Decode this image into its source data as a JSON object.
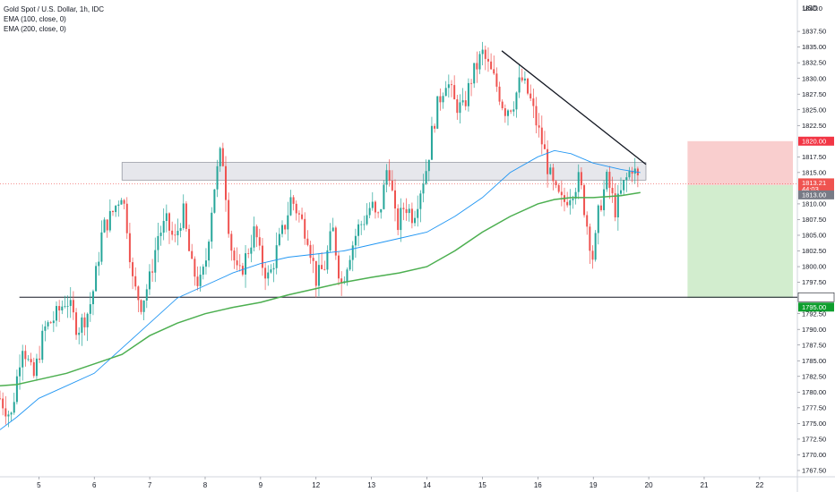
{
  "legend": {
    "symbol": "Gold Spot / U.S. Dollar, 1h, IDC",
    "ema100": "EMA (100, close, 0)",
    "ema200": "EMA (200, close, 0)"
  },
  "currency": "USD",
  "colors": {
    "up": "#26a69a",
    "down": "#ef5350",
    "ema100": "#2196f3",
    "ema200": "#4caf50",
    "resistance_zone": "#d1d4dc",
    "stop_zone": "#f8c9c9",
    "target_zone": "#cdebc9",
    "stop_tag": "#f23645",
    "target_tag": "#0e9e2e",
    "price_tag": "#ef5350",
    "support_tag": "#131722"
  },
  "chart_data": {
    "type": "candlestick",
    "ylim": [
      1766.5,
      1842.5
    ],
    "y_ticks": [
      "1767.50",
      "1770.00",
      "1772.50",
      "1775.00",
      "1777.50",
      "1780.00",
      "1782.50",
      "1785.00",
      "1787.50",
      "1790.00",
      "1792.50",
      "1797.50",
      "1800.00",
      "1802.50",
      "1805.00",
      "1807.50",
      "1810.00",
      "1815.00",
      "1817.50",
      "1822.50",
      "1825.00",
      "1827.50",
      "1830.00",
      "1832.50",
      "1835.00",
      "1837.50"
    ],
    "y_top_partial": "1840.0",
    "x_ticks": [
      "5",
      "6",
      "7",
      "8",
      "9",
      "12",
      "13",
      "14",
      "15",
      "16",
      "19",
      "20",
      "21",
      "22"
    ],
    "x_tick_pos": [
      5,
      6,
      7,
      8,
      9,
      10,
      11,
      12,
      13,
      14,
      15,
      16,
      17,
      18
    ],
    "x_range": [
      4.3,
      18.6
    ],
    "price_path": [
      [
        4.3,
        1779
      ],
      [
        4.5,
        1776
      ],
      [
        4.7,
        1788
      ],
      [
        4.9,
        1782
      ],
      [
        5.1,
        1790
      ],
      [
        5.3,
        1792
      ],
      [
        5.5,
        1795
      ],
      [
        5.7,
        1790
      ],
      [
        5.9,
        1793
      ],
      [
        6.0,
        1797
      ],
      [
        6.15,
        1806
      ],
      [
        6.3,
        1808
      ],
      [
        6.5,
        1812
      ],
      [
        6.6,
        1806
      ],
      [
        6.7,
        1797
      ],
      [
        6.85,
        1794
      ],
      [
        7.0,
        1798
      ],
      [
        7.15,
        1805
      ],
      [
        7.3,
        1807
      ],
      [
        7.45,
        1804
      ],
      [
        7.6,
        1809
      ],
      [
        7.75,
        1800
      ],
      [
        7.9,
        1797
      ],
      [
        8.0,
        1800
      ],
      [
        8.15,
        1812
      ],
      [
        8.3,
        1819
      ],
      [
        8.45,
        1804
      ],
      [
        8.6,
        1798
      ],
      [
        8.75,
        1802
      ],
      [
        8.9,
        1806
      ],
      [
        9.0,
        1801
      ],
      [
        9.15,
        1798
      ],
      [
        9.3,
        1803
      ],
      [
        9.45,
        1807
      ],
      [
        9.55,
        1811
      ],
      [
        9.7,
        1808
      ],
      [
        9.85,
        1805
      ],
      [
        10.0,
        1798
      ],
      [
        10.15,
        1800
      ],
      [
        10.3,
        1806
      ],
      [
        10.45,
        1797
      ],
      [
        10.6,
        1802
      ],
      [
        10.75,
        1806
      ],
      [
        10.9,
        1808
      ],
      [
        11.0,
        1810
      ],
      [
        11.1,
        1807
      ],
      [
        11.2,
        1811
      ],
      [
        11.3,
        1817
      ],
      [
        11.45,
        1806
      ],
      [
        11.6,
        1810
      ],
      [
        11.75,
        1808
      ],
      [
        11.9,
        1813
      ],
      [
        12.0,
        1816
      ],
      [
        12.1,
        1822
      ],
      [
        12.2,
        1826
      ],
      [
        12.35,
        1830
      ],
      [
        12.5,
        1826
      ],
      [
        12.65,
        1825
      ],
      [
        12.8,
        1830
      ],
      [
        12.9,
        1832
      ],
      [
        13.0,
        1834
      ],
      [
        13.1,
        1832
      ],
      [
        13.25,
        1829
      ],
      [
        13.4,
        1825
      ],
      [
        13.55,
        1826
      ],
      [
        13.7,
        1830
      ],
      [
        13.85,
        1827
      ],
      [
        14.0,
        1822
      ],
      [
        14.1,
        1819
      ],
      [
        14.2,
        1815
      ],
      [
        14.3,
        1812
      ],
      [
        14.45,
        1810
      ],
      [
        14.6,
        1812
      ],
      [
        14.75,
        1814
      ],
      [
        14.9,
        1806
      ],
      [
        15.0,
        1801
      ],
      [
        15.1,
        1809
      ],
      [
        15.25,
        1814
      ],
      [
        15.4,
        1809
      ],
      [
        15.55,
        1813
      ],
      [
        15.7,
        1816
      ],
      [
        15.85,
        1813
      ]
    ],
    "ema100": [
      [
        4.3,
        1774
      ],
      [
        4.6,
        1776
      ],
      [
        5.0,
        1779
      ],
      [
        5.5,
        1781
      ],
      [
        6.0,
        1783
      ],
      [
        6.5,
        1787
      ],
      [
        7.0,
        1791
      ],
      [
        7.5,
        1795
      ],
      [
        8.0,
        1797
      ],
      [
        8.5,
        1799
      ],
      [
        9.0,
        1800.5
      ],
      [
        9.5,
        1801.5
      ],
      [
        10.0,
        1802
      ],
      [
        10.5,
        1802.5
      ],
      [
        11.0,
        1803.5
      ],
      [
        11.5,
        1804.5
      ],
      [
        12.0,
        1805.5
      ],
      [
        12.5,
        1808
      ],
      [
        13.0,
        1811
      ],
      [
        13.5,
        1815
      ],
      [
        14.0,
        1817.5
      ],
      [
        14.3,
        1818.5
      ],
      [
        14.6,
        1818
      ],
      [
        15.0,
        1816.5
      ],
      [
        15.5,
        1815.5
      ],
      [
        15.85,
        1815
      ]
    ],
    "ema200": [
      [
        4.3,
        1781
      ],
      [
        4.6,
        1781.2
      ],
      [
        5.0,
        1782
      ],
      [
        5.5,
        1783
      ],
      [
        6.0,
        1784.5
      ],
      [
        6.5,
        1786
      ],
      [
        7.0,
        1789
      ],
      [
        7.5,
        1791
      ],
      [
        8.0,
        1792.5
      ],
      [
        8.5,
        1793.5
      ],
      [
        9.0,
        1794.3
      ],
      [
        9.5,
        1795.5
      ],
      [
        10.0,
        1796.5
      ],
      [
        10.5,
        1797.5
      ],
      [
        11.0,
        1798.3
      ],
      [
        11.5,
        1799
      ],
      [
        12.0,
        1800
      ],
      [
        12.5,
        1802.5
      ],
      [
        13.0,
        1805.5
      ],
      [
        13.5,
        1808
      ],
      [
        14.0,
        1810
      ],
      [
        14.3,
        1810.7
      ],
      [
        14.6,
        1811
      ],
      [
        15.0,
        1811
      ],
      [
        15.5,
        1811.3
      ],
      [
        15.85,
        1811.8
      ]
    ],
    "trendline": [
      [
        13.35,
        1834.4
      ],
      [
        15.95,
        1816.3
      ]
    ],
    "support_level": 1795.12,
    "resistance_zone": {
      "x_start": 6.5,
      "x_end": 15.95,
      "top": 1816.6,
      "bottom": 1813.8
    },
    "position": {
      "x_start": 16.7,
      "x_end": 18.6,
      "entry": 1813.0,
      "stop": 1820.0,
      "target": 1795.0
    },
    "price_labels": {
      "stop": "1820.00",
      "current": "1813.21",
      "countdown": "44:03",
      "entry": "1813.00",
      "support": "1795.12",
      "target": "1795.00"
    },
    "current_price": 1813.21
  }
}
